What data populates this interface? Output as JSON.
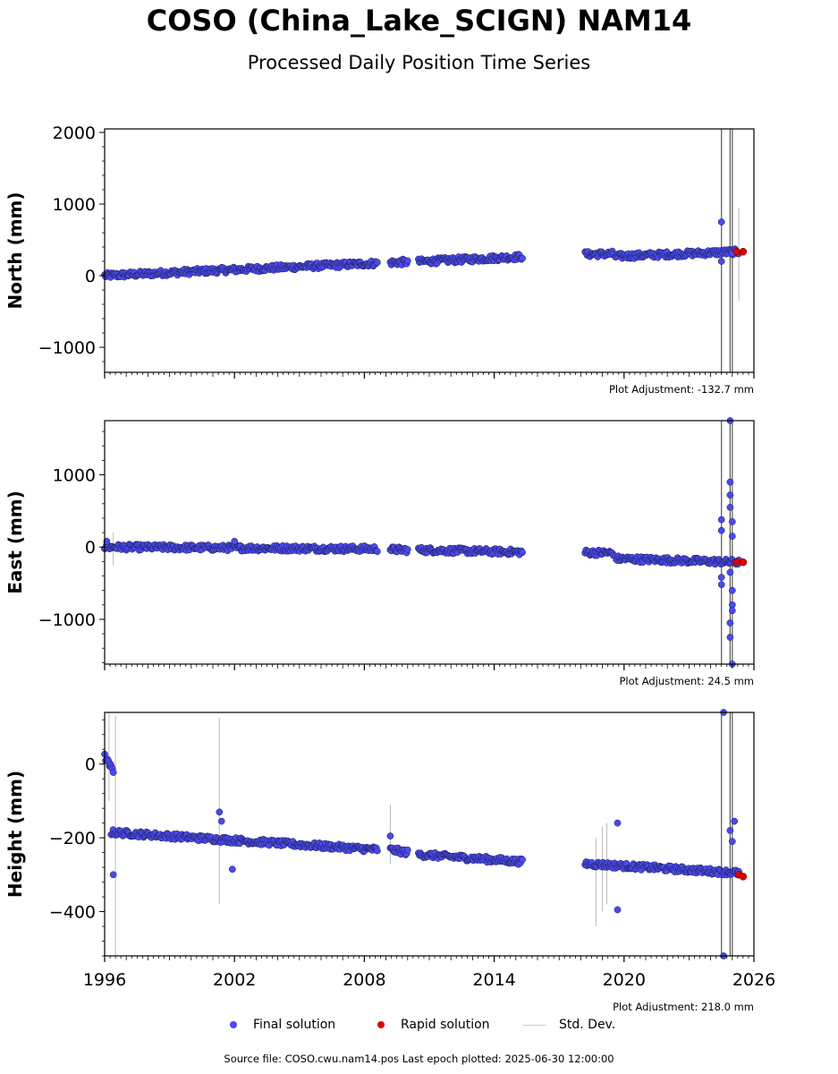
{
  "title": "COSO (China_Lake_SCIGN) NAM14",
  "subtitle": "Processed Daily Position Time Series",
  "legend": {
    "final": "Final solution",
    "rapid": "Rapid solution",
    "std": "Std. Dev."
  },
  "source": "Source file: COSO.cwu.nam14.pos  Last epoch plotted: 2025-06-30 12:00:00",
  "colors": {
    "final": "#4a4af0",
    "rapid": "#e00000",
    "std": "#bbbbbb"
  },
  "chart_data": [
    {
      "type": "scatter",
      "ylabel": "North (mm)",
      "adjustment": "Plot Adjustment: -132.7 mm",
      "xlim": [
        1996,
        2026
      ],
      "ylim": [
        -1350,
        2050
      ],
      "yticks": [
        2000,
        1000,
        0,
        -1000
      ],
      "ytick_labels": [
        "2000",
        "1000",
        "0",
        "−1000"
      ],
      "series": [
        {
          "kind": "final",
          "segments": [
            {
              "x": [
                1996.0,
                2008.6
              ],
              "y": [
                0,
                175
              ]
            },
            {
              "x": [
                2009.2,
                2010.0
              ],
              "y": [
                183,
                192
              ]
            },
            {
              "x": [
                2010.5,
                2015.3
              ],
              "y": [
                195,
                265
              ]
            },
            {
              "x": [
                2018.2,
                2019.5
              ],
              "y": [
                298,
                305
              ]
            },
            {
              "x": [
                2019.6,
                2025.3
              ],
              "y": [
                270,
                335
              ]
            }
          ],
          "outliers": [
            [
              2024.5,
              750
            ],
            [
              2024.5,
              200
            ],
            [
              2025.0,
              310
            ]
          ]
        },
        {
          "kind": "rapid",
          "points": [
            [
              2025.2,
              335
            ],
            [
              2025.5,
              335
            ]
          ]
        }
      ],
      "std_bars": [
        [
          2024.5,
          -1350,
          2050
        ],
        [
          2024.9,
          -1350,
          2050
        ],
        [
          2025.0,
          -1350,
          2050
        ],
        [
          2025.3,
          -350,
          950
        ],
        [
          2001.2,
          40,
          160
        ]
      ]
    },
    {
      "type": "scatter",
      "ylabel": "East (mm)",
      "adjustment": "Plot Adjustment: 24.5 mm",
      "xlim": [
        1996,
        2026
      ],
      "ylim": [
        -1620,
        1750
      ],
      "yticks": [
        1000,
        0,
        -1000
      ],
      "ytick_labels": [
        "1000",
        "0",
        "−1000"
      ],
      "series": [
        {
          "kind": "final",
          "segments": [
            {
              "x": [
                1996.0,
                2008.6
              ],
              "y": [
                0,
                -25
              ]
            },
            {
              "x": [
                2009.2,
                2010.0
              ],
              "y": [
                -35,
                -40
              ]
            },
            {
              "x": [
                2010.5,
                2015.3
              ],
              "y": [
                -40,
                -70
              ]
            },
            {
              "x": [
                2018.2,
                2019.5
              ],
              "y": [
                -75,
                -80
              ]
            },
            {
              "x": [
                2019.6,
                2025.3
              ],
              "y": [
                -160,
                -210
              ]
            }
          ],
          "outliers": [
            [
              2002.0,
              80
            ],
            [
              1996.1,
              80
            ],
            [
              2024.5,
              380
            ],
            [
              2024.5,
              230
            ],
            [
              2024.5,
              -420
            ],
            [
              2024.5,
              -520
            ],
            [
              2024.9,
              1750
            ],
            [
              2024.9,
              900
            ],
            [
              2024.9,
              720
            ],
            [
              2024.9,
              550
            ],
            [
              2025.0,
              350
            ],
            [
              2025.0,
              150
            ],
            [
              2024.9,
              -350
            ],
            [
              2025.0,
              -600
            ],
            [
              2025.0,
              -800
            ],
            [
              2024.9,
              -1050
            ],
            [
              2024.9,
              -1250
            ],
            [
              2025.0,
              -1620
            ],
            [
              2025.0,
              -880
            ]
          ]
        },
        {
          "kind": "rapid",
          "points": [
            [
              2025.2,
              -205
            ],
            [
              2025.5,
              -210
            ]
          ]
        }
      ],
      "std_bars": [
        [
          2024.5,
          -1620,
          1750
        ],
        [
          2024.9,
          -1620,
          1750
        ],
        [
          2025.0,
          -1620,
          1750
        ],
        [
          1996.4,
          -250,
          200
        ]
      ]
    },
    {
      "type": "scatter",
      "ylabel": "Height (mm)",
      "adjustment": "Plot Adjustment: 218.0 mm",
      "xlim": [
        1996,
        2026
      ],
      "ylim": [
        -520,
        140
      ],
      "yticks": [
        0,
        -200,
        -400
      ],
      "ytick_labels": [
        "0",
        "−200",
        "−400"
      ],
      "xticks": [
        1996,
        2002,
        2008,
        2014,
        2020,
        2026
      ],
      "xtick_labels": [
        "1996",
        "2002",
        "2008",
        "2014",
        "2020",
        "2026"
      ],
      "series": [
        {
          "kind": "final",
          "segments": [
            {
              "x": [
                1996.0,
                1996.4
              ],
              "y": [
                20,
                -20
              ]
            },
            {
              "x": [
                1996.3,
                2008.6
              ],
              "y": [
                -185,
                -232
              ]
            },
            {
              "x": [
                2009.2,
                2010.0
              ],
              "y": [
                -232,
                -240
              ]
            },
            {
              "x": [
                2010.5,
                2015.3
              ],
              "y": [
                -245,
                -265
              ]
            },
            {
              "x": [
                2018.2,
                2025.3
              ],
              "y": [
                -270,
                -295
              ]
            }
          ],
          "outliers": [
            [
              1996.4,
              -300
            ],
            [
              2001.3,
              -130
            ],
            [
              2001.4,
              -155
            ],
            [
              2001.9,
              -285
            ],
            [
              2009.2,
              -195
            ],
            [
              2019.7,
              -160
            ],
            [
              2019.7,
              -395
            ],
            [
              2024.6,
              140
            ],
            [
              2024.6,
              -520
            ],
            [
              2025.1,
              -155
            ],
            [
              2025.0,
              -210
            ],
            [
              2024.9,
              -180
            ]
          ]
        },
        {
          "kind": "rapid",
          "points": [
            [
              2025.3,
              -300
            ],
            [
              2025.5,
              -305
            ]
          ]
        }
      ],
      "std_bars": [
        [
          2024.5,
          -520,
          140
        ],
        [
          2024.9,
          -520,
          140
        ],
        [
          2025.0,
          -520,
          140
        ],
        [
          2001.3,
          -380,
          125
        ],
        [
          1996.5,
          -520,
          130
        ],
        [
          1996.2,
          -100,
          140
        ],
        [
          2009.2,
          -270,
          -110
        ],
        [
          2018.7,
          -440,
          -200
        ],
        [
          2019.0,
          -400,
          -170
        ],
        [
          2019.2,
          -380,
          -160
        ]
      ]
    }
  ]
}
